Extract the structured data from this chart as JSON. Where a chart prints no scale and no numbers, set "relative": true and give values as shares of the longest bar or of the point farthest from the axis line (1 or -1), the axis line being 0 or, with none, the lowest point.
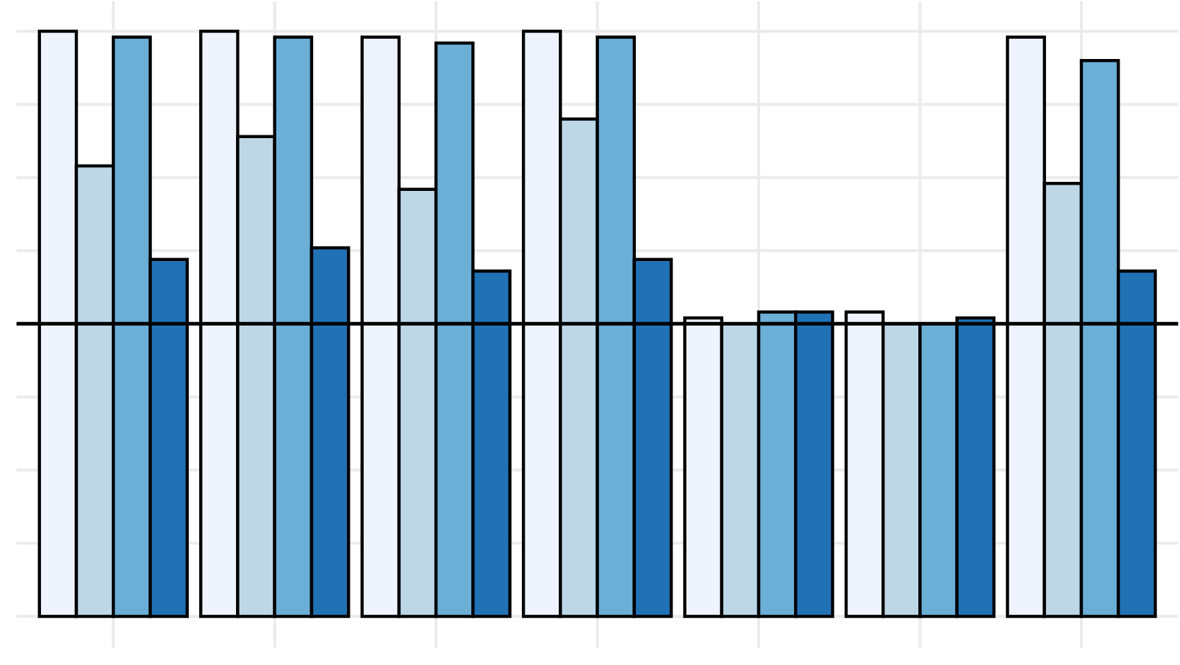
{
  "chart_data": {
    "type": "bar",
    "relative": true,
    "categories": [
      null,
      null,
      null,
      null,
      null,
      null,
      null
    ],
    "series": [
      {
        "color": "#eef3fd",
        "values": [
          1.0,
          1.0,
          0.99,
          1.0,
          0.51,
          0.52,
          0.99
        ]
      },
      {
        "color": "#bdd7e7",
        "values": [
          0.77,
          0.82,
          0.73,
          0.85,
          0.5,
          0.5,
          0.74
        ]
      },
      {
        "color": "#6baed6",
        "values": [
          0.99,
          0.99,
          0.98,
          0.99,
          0.52,
          0.5,
          0.95
        ]
      },
      {
        "color": "#2171b5",
        "values": [
          0.61,
          0.63,
          0.59,
          0.61,
          0.52,
          0.51,
          0.59
        ]
      }
    ],
    "ref_lines": [
      {
        "axis": "y",
        "value": 0.5,
        "color": "#000000"
      }
    ],
    "grid": true
  }
}
